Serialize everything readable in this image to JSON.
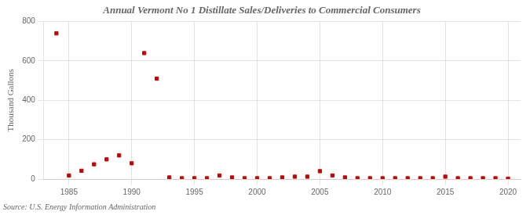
{
  "chart_data": {
    "type": "scatter",
    "title": "Annual Vermont No 1 Distillate Sales/Deliveries to Commercial Consumers",
    "ylabel": "Thousand Gallons",
    "annotations": [
      "Source: U.S. Energy Information Administration"
    ],
    "x": [
      1984,
      1985,
      1986,
      1987,
      1988,
      1989,
      1990,
      1991,
      1992,
      1993,
      1994,
      1995,
      1996,
      1997,
      1998,
      1999,
      2000,
      2001,
      2002,
      2003,
      2004,
      2005,
      2006,
      2007,
      2008,
      2009,
      2010,
      2011,
      2012,
      2013,
      2014,
      2015,
      2016,
      2017,
      2018,
      2019,
      2020
    ],
    "values": [
      740,
      18,
      42,
      75,
      100,
      120,
      80,
      640,
      510,
      8,
      4,
      4,
      4,
      18,
      8,
      4,
      4,
      4,
      8,
      12,
      12,
      40,
      18,
      8,
      4,
      4,
      4,
      4,
      4,
      4,
      4,
      12,
      4,
      4,
      4,
      4,
      2
    ],
    "color": "#cc0000",
    "marker": "square",
    "xlim": [
      1983,
      2021
    ],
    "ylim": [
      0,
      800
    ],
    "xticks": [
      1985,
      1990,
      1995,
      2000,
      2005,
      2010,
      2015,
      2020
    ],
    "yticks": [
      0,
      200,
      400,
      600,
      800
    ],
    "grid": true
  }
}
